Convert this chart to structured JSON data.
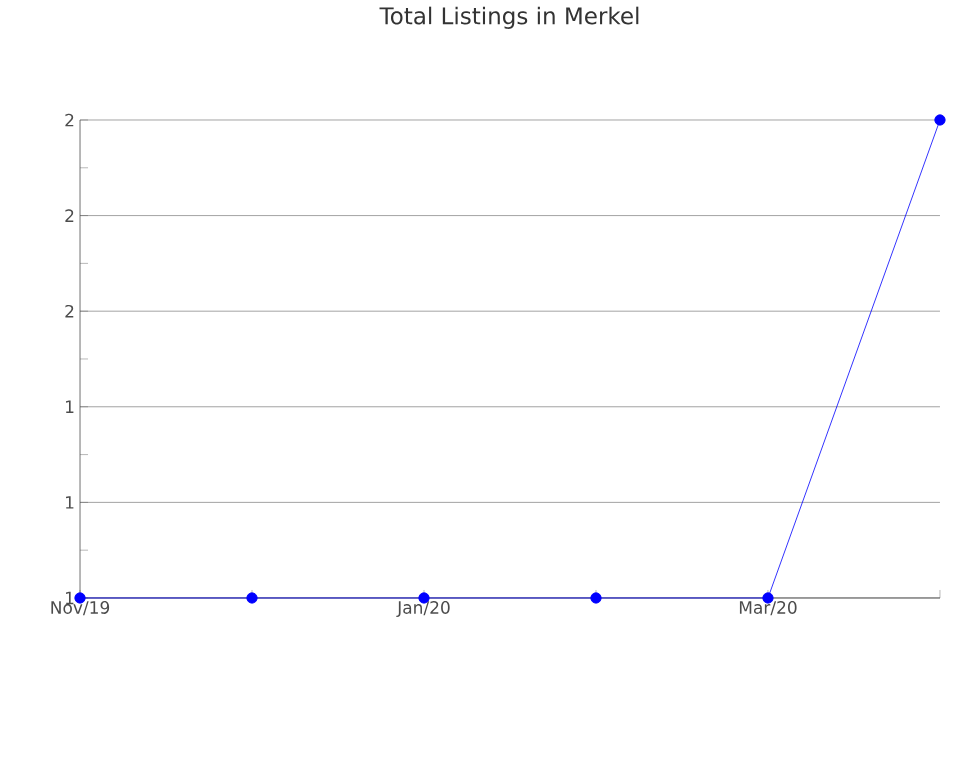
{
  "chart_data": {
    "type": "line",
    "title": "Total Listings in Merkel",
    "categories": [
      "Nov/19",
      null,
      "Jan/20",
      null,
      "Mar/20",
      null
    ],
    "series": [
      {
        "color": "#0000ff",
        "values": [
          1,
          1,
          1,
          1,
          1,
          2
        ]
      }
    ],
    "ylim": [
      1,
      2
    ],
    "yticks": [
      {
        "value": 1,
        "label": "1"
      },
      {
        "value": 1.2,
        "label": "1"
      },
      {
        "value": 1.4,
        "label": "1"
      },
      {
        "value": 1.6,
        "label": "2"
      },
      {
        "value": 1.8,
        "label": "2"
      },
      {
        "value": 2,
        "label": "2"
      }
    ],
    "grid": "y",
    "marker": "circle",
    "line_style": "solid"
  }
}
